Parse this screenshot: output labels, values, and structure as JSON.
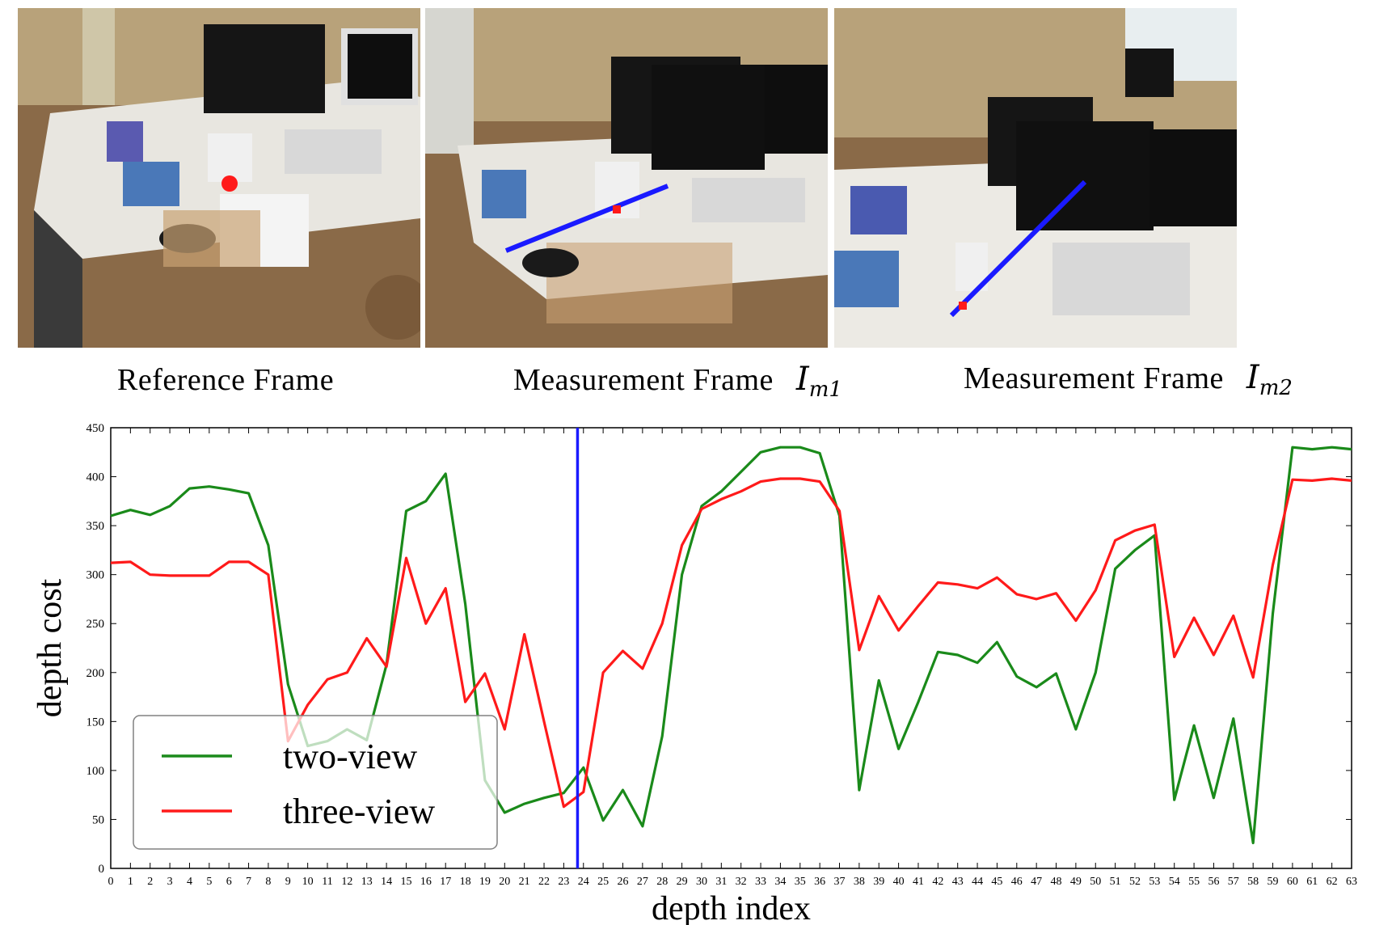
{
  "captions": {
    "reference": "Reference  Frame",
    "measurement1": "Measurement  Frame",
    "measurement1_symbol": "I",
    "measurement1_sub": "m1",
    "measurement2": "Measurement  Frame",
    "measurement2_symbol": "I",
    "measurement2_sub": "m2"
  },
  "colors": {
    "two_view": "#1a8a1a",
    "three_view": "#ff1a1a",
    "marker_line": "#1a1aff",
    "reference_point": "#ff1a1a"
  },
  "chart_data": {
    "type": "line",
    "xlabel": "depth index",
    "ylabel": "depth cost",
    "xlim": [
      0,
      63
    ],
    "ylim": [
      0,
      450
    ],
    "yticks": [
      0,
      50,
      100,
      150,
      200,
      250,
      300,
      350,
      400,
      450
    ],
    "xticks": [
      0,
      1,
      2,
      3,
      4,
      5,
      6,
      7,
      8,
      9,
      10,
      11,
      12,
      13,
      14,
      15,
      16,
      17,
      18,
      19,
      20,
      21,
      22,
      23,
      24,
      25,
      26,
      27,
      28,
      29,
      30,
      31,
      32,
      33,
      34,
      35,
      36,
      37,
      38,
      39,
      40,
      41,
      42,
      43,
      44,
      45,
      46,
      47,
      48,
      49,
      50,
      51,
      52,
      53,
      54,
      55,
      56,
      57,
      58,
      59,
      60,
      61,
      62,
      63
    ],
    "x": [
      0,
      1,
      2,
      3,
      4,
      5,
      6,
      7,
      8,
      9,
      10,
      11,
      12,
      13,
      14,
      15,
      16,
      17,
      18,
      19,
      20,
      21,
      22,
      23,
      24,
      25,
      26,
      27,
      28,
      29,
      30,
      31,
      32,
      33,
      34,
      35,
      36,
      37,
      38,
      39,
      40,
      41,
      42,
      43,
      44,
      45,
      46,
      47,
      48,
      49,
      50,
      51,
      52,
      53,
      54,
      55,
      56,
      57,
      58,
      59,
      60,
      61,
      62,
      63
    ],
    "vertical_marker_x": 23.7,
    "grid": false,
    "legend_position": "bottom-left",
    "series": [
      {
        "name": "two-view",
        "color": "#1a8a1a",
        "values": [
          360,
          366,
          361,
          370,
          388,
          390,
          387,
          383,
          330,
          188,
          125,
          130,
          142,
          131,
          208,
          365,
          375,
          403,
          270,
          90,
          57,
          66,
          72,
          77,
          103,
          49,
          80,
          43,
          135,
          300,
          370,
          385,
          405,
          425,
          430,
          430,
          424,
          360,
          80,
          192,
          122,
          170,
          221,
          218,
          210,
          231,
          196,
          185,
          199,
          142,
          200,
          306,
          325,
          340,
          70,
          146,
          72,
          153,
          26,
          260,
          430,
          428,
          430,
          428
        ]
      },
      {
        "name": "three-view",
        "color": "#ff1a1a",
        "values": [
          312,
          313,
          300,
          299,
          299,
          299,
          313,
          313,
          300,
          130,
          167,
          193,
          200,
          235,
          206,
          317,
          250,
          286,
          170,
          199,
          142,
          239,
          150,
          63,
          78,
          200,
          222,
          204,
          250,
          330,
          367,
          377,
          385,
          395,
          398,
          398,
          395,
          365,
          223,
          278,
          243,
          268,
          292,
          290,
          286,
          297,
          280,
          275,
          281,
          253,
          284,
          335,
          345,
          351,
          216,
          256,
          218,
          258,
          195,
          310,
          397,
          396,
          398,
          396
        ]
      }
    ]
  }
}
